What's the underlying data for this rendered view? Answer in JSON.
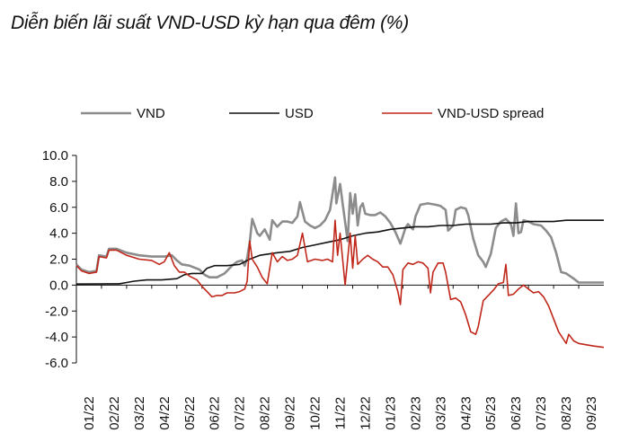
{
  "title": "Diễn biến lãi suất VND-USD kỳ hạn qua đêm (%)",
  "chart_data": {
    "type": "line",
    "title": "Diễn biến lãi suất VND-USD kỳ hạn qua đêm (%)",
    "xlabel": "",
    "ylabel": "",
    "ylim": [
      -6,
      10
    ],
    "xlim": [
      0,
      21
    ],
    "y_ticks": [
      10,
      8,
      6,
      4,
      2,
      0,
      -2,
      -4,
      -6
    ],
    "y_tick_labels": [
      "10.0",
      "8.0",
      "6.0",
      "4.0",
      "2.0",
      "0.0",
      "-2.0",
      "-4.0",
      "-6.0"
    ],
    "x_ticks": [
      0,
      1,
      2,
      3,
      4,
      5,
      6,
      7,
      8,
      9,
      10,
      11,
      12,
      13,
      14,
      15,
      16,
      17,
      18,
      19,
      20
    ],
    "x_tick_labels": [
      "01/22",
      "02/22",
      "03/22",
      "04/22",
      "05/22",
      "06/22",
      "07/22",
      "08/22",
      "09/22",
      "10/22",
      "11/22",
      "12/22",
      "01/23",
      "02/23",
      "03/23",
      "04/23",
      "05/23",
      "06/23",
      "07/23",
      "08/23",
      "09/23"
    ],
    "legend_position": "top",
    "grid": false,
    "series": [
      {
        "name": "VND",
        "color": "#8c8c8c",
        "points": [
          [
            0,
            1.6
          ],
          [
            0.2,
            1.2
          ],
          [
            0.5,
            1.0
          ],
          [
            0.8,
            1.1
          ],
          [
            0.9,
            2.3
          ],
          [
            1.2,
            2.2
          ],
          [
            1.3,
            2.8
          ],
          [
            1.6,
            2.8
          ],
          [
            2.0,
            2.5
          ],
          [
            2.5,
            2.3
          ],
          [
            3.0,
            2.2
          ],
          [
            3.5,
            2.2
          ],
          [
            3.8,
            2.3
          ],
          [
            4.0,
            1.9
          ],
          [
            4.2,
            1.6
          ],
          [
            4.5,
            1.5
          ],
          [
            4.9,
            1.2
          ],
          [
            5.1,
            0.8
          ],
          [
            5.3,
            0.6
          ],
          [
            5.6,
            0.6
          ],
          [
            5.9,
            0.9
          ],
          [
            6.2,
            1.5
          ],
          [
            6.4,
            1.8
          ],
          [
            6.6,
            1.9
          ],
          [
            6.7,
            1.5
          ],
          [
            6.8,
            2.1
          ],
          [
            6.9,
            3.3
          ],
          [
            7.0,
            5.1
          ],
          [
            7.2,
            4.0
          ],
          [
            7.3,
            3.8
          ],
          [
            7.5,
            4.3
          ],
          [
            7.7,
            3.5
          ],
          [
            7.8,
            5.0
          ],
          [
            8.0,
            4.5
          ],
          [
            8.2,
            4.9
          ],
          [
            8.4,
            4.9
          ],
          [
            8.6,
            4.8
          ],
          [
            8.8,
            5.3
          ],
          [
            8.9,
            6.4
          ],
          [
            9.1,
            4.9
          ],
          [
            9.3,
            4.6
          ],
          [
            9.5,
            4.4
          ],
          [
            9.7,
            4.6
          ],
          [
            9.9,
            5.0
          ],
          [
            10.1,
            5.8
          ],
          [
            10.3,
            8.3
          ],
          [
            10.35,
            6.3
          ],
          [
            10.5,
            7.8
          ],
          [
            10.6,
            6.3
          ],
          [
            10.8,
            3.4
          ],
          [
            10.9,
            7.1
          ],
          [
            11.0,
            5.5
          ],
          [
            11.1,
            7.0
          ],
          [
            11.2,
            4.6
          ],
          [
            11.3,
            6.0
          ],
          [
            11.4,
            6.3
          ],
          [
            11.5,
            5.5
          ],
          [
            11.7,
            5.4
          ],
          [
            11.9,
            5.4
          ],
          [
            12.1,
            5.6
          ],
          [
            12.3,
            5.3
          ],
          [
            12.5,
            4.8
          ],
          [
            12.7,
            4.1
          ],
          [
            12.9,
            3.2
          ],
          [
            13.1,
            4.4
          ],
          [
            13.2,
            4.7
          ],
          [
            13.4,
            4.3
          ],
          [
            13.5,
            5.3
          ],
          [
            13.7,
            6.2
          ],
          [
            14.0,
            6.3
          ],
          [
            14.3,
            6.2
          ],
          [
            14.5,
            6.1
          ],
          [
            14.7,
            5.8
          ],
          [
            14.8,
            4.2
          ],
          [
            15.0,
            4.6
          ],
          [
            15.1,
            5.8
          ],
          [
            15.3,
            6.0
          ],
          [
            15.5,
            5.9
          ],
          [
            15.6,
            5.4
          ],
          [
            15.8,
            3.6
          ],
          [
            16.0,
            2.3
          ],
          [
            16.2,
            1.8
          ],
          [
            16.3,
            1.4
          ],
          [
            16.5,
            2.4
          ],
          [
            16.7,
            4.4
          ],
          [
            16.9,
            4.9
          ],
          [
            17.1,
            5.1
          ],
          [
            17.3,
            4.7
          ],
          [
            17.4,
            3.8
          ],
          [
            17.5,
            6.3
          ],
          [
            17.6,
            4.0
          ],
          [
            17.7,
            4.1
          ],
          [
            17.8,
            5.0
          ],
          [
            18.0,
            4.9
          ],
          [
            18.2,
            4.7
          ],
          [
            18.5,
            4.6
          ],
          [
            18.7,
            4.2
          ],
          [
            18.9,
            3.7
          ],
          [
            19.1,
            2.5
          ],
          [
            19.3,
            1.0
          ],
          [
            19.5,
            0.9
          ],
          [
            19.8,
            0.5
          ],
          [
            20.0,
            0.2
          ],
          [
            20.5,
            0.2
          ],
          [
            21.0,
            0.2
          ]
        ]
      },
      {
        "name": "USD",
        "color": "#111111",
        "points": [
          [
            0,
            0.08
          ],
          [
            1.7,
            0.1
          ],
          [
            2.0,
            0.2
          ],
          [
            2.3,
            0.3
          ],
          [
            2.8,
            0.4
          ],
          [
            3.4,
            0.4
          ],
          [
            4.0,
            0.5
          ],
          [
            4.3,
            0.8
          ],
          [
            4.6,
            0.9
          ],
          [
            5.0,
            0.9
          ],
          [
            5.2,
            1.3
          ],
          [
            5.5,
            1.5
          ],
          [
            6.0,
            1.5
          ],
          [
            6.5,
            1.6
          ],
          [
            6.9,
            2.0
          ],
          [
            7.3,
            2.3
          ],
          [
            8.0,
            2.5
          ],
          [
            8.5,
            2.6
          ],
          [
            9.0,
            2.9
          ],
          [
            9.5,
            3.1
          ],
          [
            10.0,
            3.3
          ],
          [
            10.5,
            3.5
          ],
          [
            11.0,
            3.8
          ],
          [
            11.5,
            4.0
          ],
          [
            12.0,
            4.1
          ],
          [
            12.5,
            4.3
          ],
          [
            13.0,
            4.4
          ],
          [
            13.5,
            4.5
          ],
          [
            14.0,
            4.5
          ],
          [
            14.5,
            4.6
          ],
          [
            15.0,
            4.6
          ],
          [
            15.5,
            4.7
          ],
          [
            16.0,
            4.7
          ],
          [
            16.5,
            4.7
          ],
          [
            17.0,
            4.8
          ],
          [
            17.5,
            4.8
          ],
          [
            18.0,
            4.9
          ],
          [
            18.5,
            4.9
          ],
          [
            19.0,
            4.9
          ],
          [
            19.5,
            5.0
          ],
          [
            20.0,
            5.0
          ],
          [
            21.0,
            5.0
          ]
        ]
      },
      {
        "name": "VND-USD spread",
        "color": "#c0271a",
        "points": [
          [
            0,
            1.5
          ],
          [
            0.2,
            1.1
          ],
          [
            0.5,
            0.9
          ],
          [
            0.8,
            1.0
          ],
          [
            0.9,
            2.2
          ],
          [
            1.2,
            2.1
          ],
          [
            1.3,
            2.7
          ],
          [
            1.6,
            2.7
          ],
          [
            2.0,
            2.3
          ],
          [
            2.5,
            2.0
          ],
          [
            3.0,
            1.9
          ],
          [
            3.3,
            1.6
          ],
          [
            3.5,
            1.8
          ],
          [
            3.7,
            2.5
          ],
          [
            3.9,
            1.5
          ],
          [
            4.1,
            1.0
          ],
          [
            4.3,
            1.0
          ],
          [
            4.5,
            0.7
          ],
          [
            4.8,
            0.4
          ],
          [
            5.0,
            -0.1
          ],
          [
            5.2,
            -0.5
          ],
          [
            5.4,
            -0.9
          ],
          [
            5.6,
            -0.8
          ],
          [
            5.8,
            -0.8
          ],
          [
            6.0,
            -0.6
          ],
          [
            6.3,
            -0.6
          ],
          [
            6.5,
            -0.5
          ],
          [
            6.7,
            -0.3
          ],
          [
            6.8,
            0.3
          ],
          [
            6.9,
            3.4
          ],
          [
            7.0,
            2.0
          ],
          [
            7.2,
            1.4
          ],
          [
            7.4,
            0.6
          ],
          [
            7.6,
            0.1
          ],
          [
            7.8,
            2.5
          ],
          [
            8.0,
            1.8
          ],
          [
            8.2,
            2.2
          ],
          [
            8.4,
            1.9
          ],
          [
            8.6,
            2.0
          ],
          [
            8.8,
            2.3
          ],
          [
            9.0,
            4.0
          ],
          [
            9.2,
            1.8
          ],
          [
            9.5,
            2.0
          ],
          [
            9.8,
            1.9
          ],
          [
            10.0,
            2.0
          ],
          [
            10.2,
            1.8
          ],
          [
            10.3,
            5.0
          ],
          [
            10.4,
            2.3
          ],
          [
            10.5,
            4.0
          ],
          [
            10.7,
            0.0
          ],
          [
            10.8,
            2.0
          ],
          [
            10.9,
            4.0
          ],
          [
            11.0,
            1.3
          ],
          [
            11.1,
            3.8
          ],
          [
            11.2,
            1.6
          ],
          [
            11.4,
            2.0
          ],
          [
            11.6,
            2.3
          ],
          [
            11.8,
            2.0
          ],
          [
            12.0,
            1.8
          ],
          [
            12.2,
            1.4
          ],
          [
            12.4,
            1.4
          ],
          [
            12.6,
            0.8
          ],
          [
            12.8,
            -0.5
          ],
          [
            12.9,
            -1.5
          ],
          [
            13.0,
            1.2
          ],
          [
            13.2,
            1.7
          ],
          [
            13.4,
            1.6
          ],
          [
            13.6,
            1.8
          ],
          [
            13.8,
            1.7
          ],
          [
            14.0,
            1.3
          ],
          [
            14.1,
            -0.6
          ],
          [
            14.2,
            1.0
          ],
          [
            14.4,
            1.7
          ],
          [
            14.6,
            1.7
          ],
          [
            14.7,
            1.0
          ],
          [
            14.9,
            -1.1
          ],
          [
            15.1,
            -1.0
          ],
          [
            15.3,
            -1.3
          ],
          [
            15.5,
            -2.3
          ],
          [
            15.7,
            -3.6
          ],
          [
            15.9,
            -3.8
          ],
          [
            16.0,
            -3.2
          ],
          [
            16.2,
            -1.2
          ],
          [
            16.4,
            -0.8
          ],
          [
            16.6,
            -0.4
          ],
          [
            16.8,
            0.1
          ],
          [
            17.0,
            0.2
          ],
          [
            17.1,
            1.6
          ],
          [
            17.2,
            -0.8
          ],
          [
            17.4,
            -0.7
          ],
          [
            17.6,
            -0.3
          ],
          [
            17.8,
            0.0
          ],
          [
            18.0,
            -0.3
          ],
          [
            18.2,
            -0.6
          ],
          [
            18.4,
            -0.5
          ],
          [
            18.6,
            -0.9
          ],
          [
            18.8,
            -1.6
          ],
          [
            19.0,
            -2.6
          ],
          [
            19.2,
            -3.6
          ],
          [
            19.4,
            -4.2
          ],
          [
            19.5,
            -4.5
          ],
          [
            19.6,
            -3.8
          ],
          [
            19.8,
            -4.3
          ],
          [
            20.0,
            -4.5
          ],
          [
            20.3,
            -4.6
          ],
          [
            20.6,
            -4.7
          ],
          [
            21.0,
            -4.8
          ]
        ]
      }
    ]
  }
}
